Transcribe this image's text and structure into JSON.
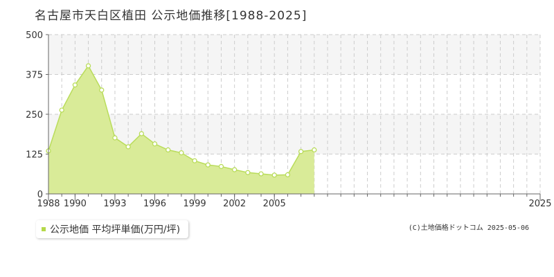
{
  "title": "名古屋市天白区植田 公示地価推移[1988-2025]",
  "legend": {
    "label": "公示地価 平均坪単価(万円/坪)"
  },
  "credit": "(C)土地価格ドットコム 2025-05-06",
  "colors": {
    "area": "#d9eb98",
    "line": "#b9dc5a",
    "point_fill": "#ffffff",
    "band": "#f5f5f5",
    "grid": "#cccccc",
    "legend_marker": "#b5d94a"
  },
  "chart_data": {
    "type": "area",
    "title": "名古屋市天白区植田 公示地価推移[1988-2025]",
    "xlabel": "",
    "ylabel": "",
    "ylim": [
      0,
      500
    ],
    "yticks": [
      0,
      125,
      250,
      375,
      500
    ],
    "xlim": [
      1988,
      2025
    ],
    "xticks": [
      1988,
      1990,
      1993,
      1996,
      1999,
      2002,
      2005,
      2025
    ],
    "grid": true,
    "legend_position": "bottom-left",
    "series": [
      {
        "name": "公示地価 平均坪単価(万円/坪)",
        "x": [
          1988,
          1989,
          1990,
          1991,
          1992,
          1993,
          1994,
          1995,
          1996,
          1997,
          1998,
          1999,
          2000,
          2001,
          2002,
          2003,
          2004,
          2005,
          2006,
          2007,
          2008
        ],
        "values": [
          135,
          263,
          342,
          402,
          326,
          176,
          148,
          189,
          157,
          138,
          129,
          104,
          91,
          86,
          76,
          67,
          63,
          59,
          60,
          133,
          138
        ]
      }
    ]
  }
}
